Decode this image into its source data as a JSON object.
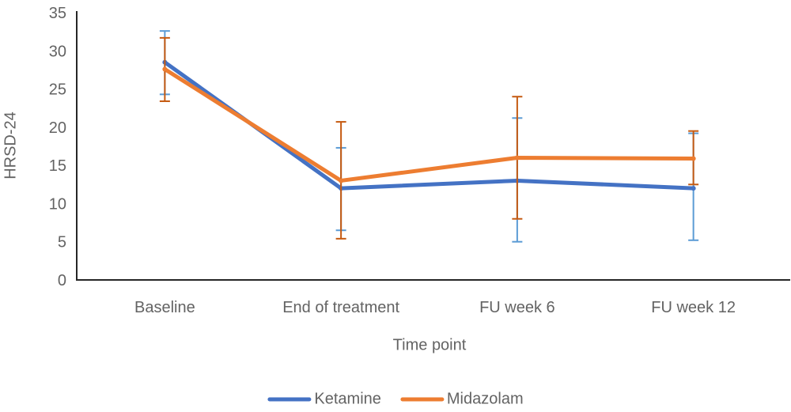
{
  "chart_data": {
    "type": "line",
    "title": "",
    "xlabel": "Time point",
    "ylabel": "HRSD-24",
    "categories": [
      "Baseline",
      "End of treatment",
      "FU week 6",
      "FU week 12"
    ],
    "ylim": [
      0,
      35
    ],
    "yticks": [
      0,
      5,
      10,
      15,
      20,
      25,
      30,
      35
    ],
    "grid": false,
    "legend_position": "bottom",
    "axis_color": "#262626",
    "text_color": "#636363",
    "background_color": "#ffffff",
    "series": [
      {
        "name": "Ketamine",
        "color": "#4472C4",
        "error_color": "#5B9BD5",
        "values": [
          28.5,
          12,
          13,
          12
        ],
        "error_low": [
          24.3,
          6.5,
          5,
          5.2
        ],
        "error_high": [
          32.6,
          17.3,
          21.2,
          19.2
        ]
      },
      {
        "name": "Midazolam",
        "color": "#ED7D31",
        "error_color": "#C55A11",
        "values": [
          27.6,
          13,
          16,
          15.9
        ],
        "error_low": [
          23.4,
          5.4,
          8,
          12.5
        ],
        "error_high": [
          31.7,
          20.7,
          24,
          19.5
        ]
      }
    ]
  }
}
